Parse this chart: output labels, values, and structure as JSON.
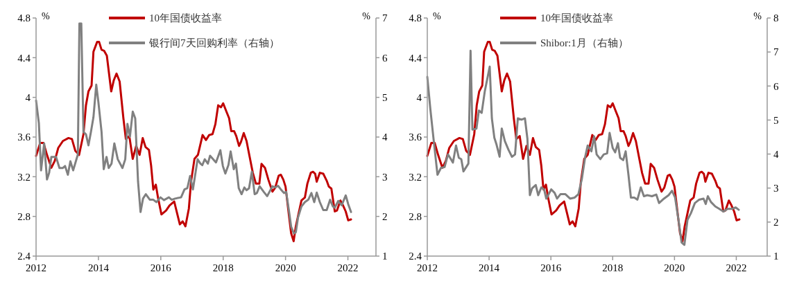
{
  "chart_data": [
    {
      "type": "line",
      "ylabel": "%",
      "y2label": "%",
      "xlim": [
        2012,
        2022.9
      ],
      "xticks": [
        2012,
        2014,
        2016,
        2018,
        2020,
        2022
      ],
      "ylim": [
        2.4,
        4.8
      ],
      "yticks": [
        2.4,
        2.8,
        3.2,
        3.6,
        4,
        4.4,
        4.8
      ],
      "y2lim": [
        1,
        7
      ],
      "y2ticks": [
        1,
        2,
        3,
        4,
        5,
        6,
        7
      ],
      "grid": false,
      "legend": "top",
      "marker": "none",
      "line_style": "solid",
      "series": [
        {
          "name": "10年国债收益率",
          "color": "#c00000",
          "x": [
            2012,
            2012.13,
            2012.24,
            2012.35,
            2012.49,
            2012.6,
            2012.71,
            2012.86,
            2013.04,
            2013.15,
            2013.26,
            2013.38,
            2013.52,
            2013.6,
            2013.68,
            2013.78,
            2013.84,
            2013.96,
            2014.02,
            2014.1,
            2014.18,
            2014.27,
            2014.41,
            2014.49,
            2014.58,
            2014.68,
            2014.8,
            2014.88,
            2014.99,
            2015.1,
            2015.21,
            2015.32,
            2015.42,
            2015.51,
            2015.62,
            2015.69,
            2015.76,
            2015.84,
            2015.91,
            2016.02,
            2016.17,
            2016.28,
            2016.43,
            2016.61,
            2016.7,
            2016.79,
            2016.9,
            2016.97,
            2017.08,
            2017.19,
            2017.34,
            2017.45,
            2017.55,
            2017.66,
            2017.75,
            2017.84,
            2017.93,
            2018.0,
            2018.1,
            2018.19,
            2018.26,
            2018.35,
            2018.42,
            2018.51,
            2018.57,
            2018.66,
            2018.75,
            2018.85,
            2018.95,
            2019.05,
            2019.16,
            2019.23,
            2019.34,
            2019.45,
            2019.58,
            2019.67,
            2019.78,
            2019.85,
            2019.93,
            2020.0,
            2020.11,
            2020.18,
            2020.26,
            2020.33,
            2020.42,
            2020.51,
            2020.62,
            2020.7,
            2020.81,
            2020.88,
            2020.95,
            2021.0,
            2021.1,
            2021.21,
            2021.32,
            2021.39,
            2021.47,
            2021.58,
            2021.65,
            2021.76,
            2021.83,
            2021.93,
            2022.01,
            2022.1
          ],
          "values": [
            3.41,
            3.54,
            3.54,
            3.42,
            3.29,
            3.36,
            3.49,
            3.56,
            3.59,
            3.58,
            3.46,
            3.42,
            3.63,
            3.92,
            4.06,
            4.12,
            4.46,
            4.56,
            4.56,
            4.48,
            4.47,
            4.42,
            4.06,
            4.17,
            4.24,
            4.16,
            3.79,
            3.58,
            3.61,
            3.38,
            3.51,
            3.42,
            3.59,
            3.5,
            3.47,
            3.31,
            3.07,
            3.12,
            2.99,
            2.82,
            2.86,
            2.91,
            2.95,
            2.72,
            2.75,
            2.7,
            2.88,
            3.15,
            3.38,
            3.42,
            3.62,
            3.57,
            3.62,
            3.63,
            3.73,
            3.92,
            3.9,
            3.94,
            3.86,
            3.79,
            3.66,
            3.66,
            3.61,
            3.51,
            3.55,
            3.64,
            3.56,
            3.4,
            3.24,
            3.13,
            3.13,
            3.33,
            3.29,
            3.17,
            3.05,
            3.09,
            3.21,
            3.22,
            3.17,
            3.1,
            2.81,
            2.63,
            2.55,
            2.7,
            2.83,
            2.96,
            2.99,
            3.13,
            3.24,
            3.25,
            3.23,
            3.15,
            3.24,
            3.23,
            3.16,
            3.1,
            3.08,
            2.85,
            2.86,
            2.96,
            2.92,
            2.85,
            2.76,
            2.77
          ]
        },
        {
          "name": "银行间7天回购利率（右轴）",
          "color": "#808080",
          "axis": "y2",
          "x": [
            2012,
            2012.09,
            2012.16,
            2012.26,
            2012.35,
            2012.42,
            2012.49,
            2012.64,
            2012.75,
            2012.86,
            2012.93,
            2013.02,
            2013.1,
            2013.19,
            2013.34,
            2013.39,
            2013.45,
            2013.52,
            2013.6,
            2013.68,
            2013.76,
            2013.84,
            2013.93,
            2014.0,
            2014.1,
            2014.17,
            2014.26,
            2014.33,
            2014.42,
            2014.51,
            2014.62,
            2014.77,
            2014.86,
            2014.93,
            2015.01,
            2015.1,
            2015.18,
            2015.27,
            2015.35,
            2015.43,
            2015.52,
            2015.65,
            2015.76,
            2015.86,
            2015.99,
            2016.1,
            2016.26,
            2016.35,
            2016.46,
            2016.65,
            2016.76,
            2016.85,
            2016.94,
            2017.03,
            2017.18,
            2017.27,
            2017.33,
            2017.41,
            2017.51,
            2017.58,
            2017.77,
            2017.91,
            2017.99,
            2018.07,
            2018.17,
            2018.24,
            2018.34,
            2018.41,
            2018.5,
            2018.59,
            2018.68,
            2018.75,
            2018.83,
            2018.92,
            2019.01,
            2019.08,
            2019.17,
            2019.3,
            2019.41,
            2019.58,
            2019.67,
            2019.76,
            2019.85,
            2019.95,
            2020.02,
            2020.11,
            2020.18,
            2020.27,
            2020.33,
            2020.4,
            2020.51,
            2020.62,
            2020.73,
            2020.83,
            2020.92,
            2021.0,
            2021.1,
            2021.21,
            2021.32,
            2021.43,
            2021.52,
            2021.58,
            2021.69,
            2021.8,
            2021.93,
            2022.01,
            2022.1
          ],
          "values": [
            4.92,
            4.35,
            3.16,
            3.84,
            2.93,
            3.1,
            3.5,
            3.5,
            3.22,
            3.22,
            3.27,
            3.05,
            3.39,
            3.16,
            3.56,
            6.86,
            6.86,
            4.13,
            4.07,
            3.79,
            4.13,
            4.5,
            5.32,
            4.87,
            4.13,
            3.19,
            3.5,
            3.22,
            3.33,
            3.84,
            3.44,
            3.22,
            3.44,
            4.33,
            4.01,
            4.64,
            4.47,
            2.88,
            2.11,
            2.45,
            2.56,
            2.42,
            2.42,
            2.36,
            2.48,
            2.41,
            2.48,
            2.42,
            2.45,
            2.48,
            2.68,
            2.71,
            3.02,
            2.68,
            3.44,
            3.33,
            3.29,
            3.44,
            3.33,
            3.53,
            3.36,
            3.67,
            3.27,
            3.08,
            3.3,
            3.64,
            3.19,
            3.33,
            2.71,
            2.56,
            2.73,
            2.66,
            2.71,
            3.13,
            2.56,
            2.59,
            2.76,
            2.62,
            2.51,
            2.76,
            2.73,
            2.77,
            2.68,
            2.59,
            2.62,
            2.14,
            1.74,
            1.57,
            1.6,
            1.97,
            2.25,
            2.36,
            2.42,
            2.59,
            2.36,
            2.6,
            2.36,
            2.16,
            2.16,
            2.42,
            2.25,
            2.22,
            2.39,
            2.28,
            2.53,
            2.31,
            2.11
          ]
        }
      ]
    },
    {
      "type": "line",
      "ylabel": "%",
      "y2label": "%",
      "xlim": [
        2012,
        2023
      ],
      "xticks": [
        2012,
        2014,
        2016,
        2018,
        2020,
        2022
      ],
      "ylim": [
        2.4,
        4.8
      ],
      "yticks": [
        2.4,
        2.8,
        3.2,
        3.6,
        4,
        4.4,
        4.8
      ],
      "y2lim": [
        1,
        8
      ],
      "y2ticks": [
        1,
        2,
        3,
        4,
        5,
        6,
        7,
        8
      ],
      "grid": false,
      "legend": "top",
      "marker": "none",
      "line_style": "solid",
      "series": [
        {
          "name": "10年国债收益率",
          "color": "#c00000",
          "x": [
            2012,
            2012.13,
            2012.24,
            2012.35,
            2012.49,
            2012.6,
            2012.71,
            2012.86,
            2013.04,
            2013.15,
            2013.26,
            2013.38,
            2013.52,
            2013.6,
            2013.68,
            2013.78,
            2013.84,
            2013.96,
            2014.02,
            2014.1,
            2014.18,
            2014.27,
            2014.41,
            2014.49,
            2014.58,
            2014.68,
            2014.8,
            2014.88,
            2014.99,
            2015.1,
            2015.21,
            2015.32,
            2015.42,
            2015.51,
            2015.62,
            2015.69,
            2015.76,
            2015.84,
            2015.91,
            2016.02,
            2016.17,
            2016.28,
            2016.43,
            2016.61,
            2016.7,
            2016.79,
            2016.9,
            2016.97,
            2017.08,
            2017.19,
            2017.34,
            2017.45,
            2017.55,
            2017.66,
            2017.75,
            2017.84,
            2017.93,
            2018.0,
            2018.1,
            2018.19,
            2018.26,
            2018.35,
            2018.42,
            2018.51,
            2018.57,
            2018.66,
            2018.75,
            2018.85,
            2018.95,
            2019.05,
            2019.16,
            2019.23,
            2019.34,
            2019.45,
            2019.58,
            2019.67,
            2019.78,
            2019.85,
            2019.93,
            2020.0,
            2020.11,
            2020.18,
            2020.26,
            2020.33,
            2020.42,
            2020.51,
            2020.62,
            2020.7,
            2020.81,
            2020.88,
            2020.95,
            2021.0,
            2021.1,
            2021.21,
            2021.32,
            2021.39,
            2021.47,
            2021.58,
            2021.65,
            2021.76,
            2021.83,
            2021.93,
            2022.01,
            2022.1
          ],
          "values": [
            3.41,
            3.54,
            3.54,
            3.42,
            3.29,
            3.36,
            3.49,
            3.56,
            3.59,
            3.58,
            3.46,
            3.42,
            3.63,
            3.92,
            4.06,
            4.12,
            4.46,
            4.56,
            4.56,
            4.48,
            4.47,
            4.42,
            4.06,
            4.17,
            4.24,
            4.16,
            3.79,
            3.58,
            3.61,
            3.38,
            3.51,
            3.42,
            3.59,
            3.5,
            3.47,
            3.31,
            3.07,
            3.12,
            2.99,
            2.82,
            2.86,
            2.91,
            2.95,
            2.72,
            2.75,
            2.7,
            2.88,
            3.15,
            3.38,
            3.42,
            3.62,
            3.57,
            3.62,
            3.63,
            3.73,
            3.92,
            3.9,
            3.94,
            3.86,
            3.79,
            3.66,
            3.66,
            3.61,
            3.51,
            3.55,
            3.64,
            3.56,
            3.4,
            3.24,
            3.13,
            3.13,
            3.33,
            3.29,
            3.17,
            3.05,
            3.09,
            3.21,
            3.22,
            3.17,
            3.1,
            2.81,
            2.63,
            2.55,
            2.7,
            2.83,
            2.96,
            2.99,
            3.13,
            3.24,
            3.25,
            3.23,
            3.15,
            3.24,
            3.23,
            3.16,
            3.1,
            3.08,
            2.85,
            2.86,
            2.96,
            2.92,
            2.85,
            2.76,
            2.77
          ]
        },
        {
          "name": "Shibor:1月（右轴）",
          "color": "#808080",
          "axis": "y2",
          "x": [
            2012,
            2012.1,
            2012.21,
            2012.33,
            2012.44,
            2012.56,
            2012.67,
            2012.83,
            2012.93,
            2013.02,
            2013.1,
            2013.17,
            2013.33,
            2013.4,
            2013.46,
            2013.59,
            2013.67,
            2013.76,
            2013.86,
            2014.02,
            2014.09,
            2014.17,
            2014.24,
            2014.34,
            2014.41,
            2014.51,
            2014.63,
            2014.74,
            2014.84,
            2014.93,
            2015.05,
            2015.16,
            2015.24,
            2015.32,
            2015.39,
            2015.51,
            2015.59,
            2015.69,
            2015.78,
            2015.85,
            2016.01,
            2016.12,
            2016.2,
            2016.31,
            2016.47,
            2016.62,
            2016.77,
            2016.89,
            2017.0,
            2017.11,
            2017.19,
            2017.31,
            2017.4,
            2017.48,
            2017.6,
            2017.71,
            2017.82,
            2017.9,
            2018.0,
            2018.08,
            2018.17,
            2018.24,
            2018.34,
            2018.42,
            2018.51,
            2018.59,
            2018.7,
            2018.8,
            2018.91,
            2019.01,
            2019.12,
            2019.27,
            2019.41,
            2019.5,
            2019.66,
            2019.81,
            2019.92,
            2020.02,
            2020.13,
            2020.23,
            2020.32,
            2020.42,
            2020.53,
            2020.66,
            2020.8,
            2020.94,
            2021.01,
            2021.08,
            2021.18,
            2021.32,
            2021.45,
            2021.58,
            2021.72,
            2021.87,
            2021.98,
            2022.08
          ],
          "values": [
            6.27,
            5.31,
            4.38,
            3.39,
            3.59,
            3.62,
            3.99,
            3.75,
            4.25,
            3.89,
            3.85,
            3.49,
            3.72,
            7.04,
            4.72,
            4.75,
            5.28,
            5.21,
            5.84,
            6.57,
            5.05,
            4.48,
            4.28,
            3.92,
            4.75,
            4.38,
            4.12,
            3.92,
            3.99,
            5.05,
            5.01,
            5.05,
            4.45,
            2.79,
            2.99,
            3.09,
            2.79,
            3.02,
            2.96,
            2.69,
            2.96,
            2.86,
            2.69,
            2.82,
            2.82,
            2.69,
            2.72,
            2.82,
            3.26,
            3.92,
            4.25,
            4.08,
            4.52,
            3.99,
            3.85,
            3.99,
            4.02,
            4.62,
            4.18,
            4.05,
            4.32,
            3.89,
            3.82,
            4.08,
            3.39,
            2.72,
            2.72,
            2.66,
            3.02,
            2.76,
            2.79,
            2.76,
            2.81,
            2.56,
            2.69,
            2.79,
            2.92,
            2.72,
            2.06,
            1.4,
            1.33,
            2.06,
            2.26,
            2.56,
            2.66,
            2.69,
            2.53,
            2.76,
            2.59,
            2.46,
            2.39,
            2.31,
            2.39,
            2.39,
            2.43,
            2.36
          ]
        }
      ]
    }
  ]
}
